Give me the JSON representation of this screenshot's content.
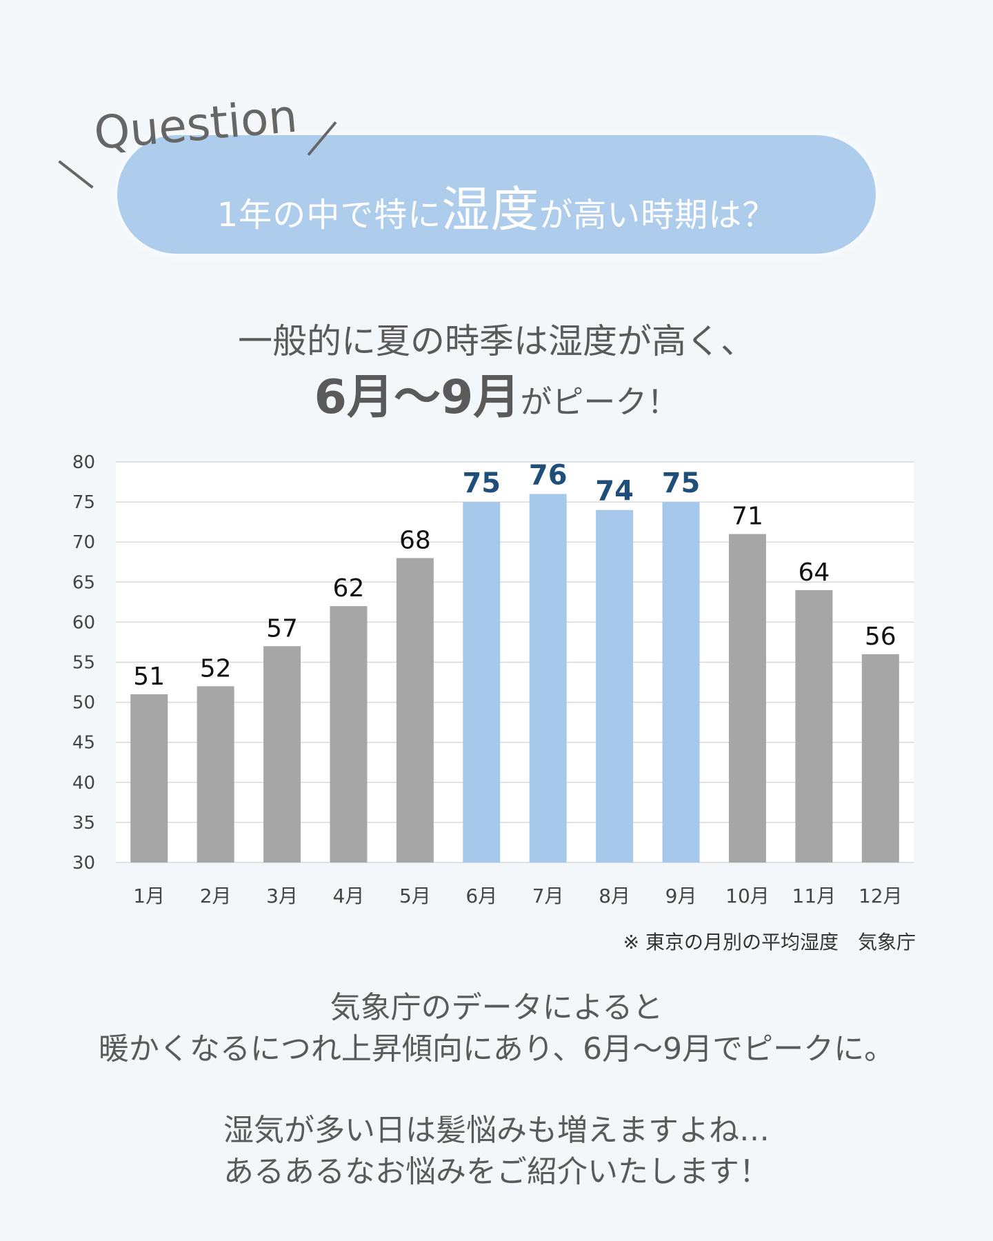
{
  "header": {
    "tag": "Question",
    "question_prefix": "1年の中で特に",
    "question_emph": "湿度",
    "question_suffix": "が高い時期は？"
  },
  "subtitle": {
    "line1": "一般的に夏の時季は湿度が高く、",
    "line2_emph": "6月〜9月",
    "line2_suffix": "がピーク！"
  },
  "chart_data": {
    "type": "bar",
    "categories": [
      "1月",
      "2月",
      "3月",
      "4月",
      "5月",
      "6月",
      "7月",
      "8月",
      "9月",
      "10月",
      "11月",
      "12月"
    ],
    "values": [
      51,
      52,
      57,
      62,
      68,
      75,
      76,
      74,
      75,
      71,
      64,
      56
    ],
    "highlight": [
      false,
      false,
      false,
      false,
      false,
      true,
      true,
      true,
      true,
      false,
      false,
      false
    ],
    "ylim": [
      30,
      80
    ],
    "yticks": [
      30,
      35,
      40,
      45,
      50,
      55,
      60,
      65,
      70,
      75,
      80
    ],
    "grid": true,
    "colors": {
      "normal": "#a6a6a6",
      "highlight": "#a6c8ea",
      "label_normal": "#111111",
      "label_highlight": "#1f4e79"
    }
  },
  "note": "※ 東京の月別の平均湿度　気象庁",
  "body": {
    "line1": "気象庁のデータによると",
    "line2": "暖かくなるにつれ上昇傾向にあり、6月〜9月でピークに。",
    "line3": "湿気が多い日は髪悩みも増えますよね…",
    "line4": "あるあるなお悩みをご紹介いたします！"
  }
}
